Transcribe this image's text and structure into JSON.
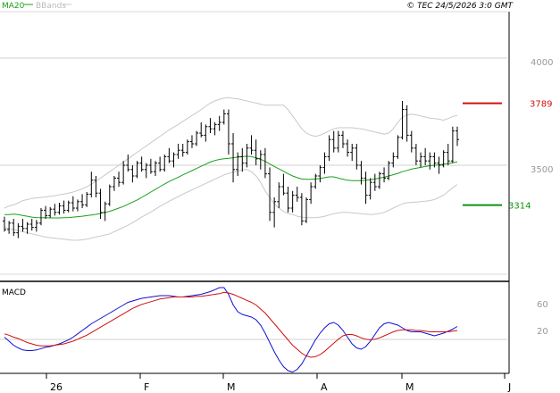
{
  "header": {
    "indicators": [
      "MA20",
      "BBands"
    ],
    "copyright": "© TEC 24/5/2026 3:0 GMT"
  },
  "colors": {
    "price": "#000000",
    "ma20": "#19a019",
    "bbands": "#c8c8c8",
    "resistance": "#d01010",
    "support": "#109010",
    "macd": "#1010d0",
    "signal": "#d01010",
    "grid": "#d0d0d0",
    "axis": "#000000",
    "label": "#999999"
  },
  "chart_data": [
    {
      "type": "ohlc",
      "title": "",
      "x_tick_labels": [
        "26",
        "F",
        "M",
        "A",
        "M",
        "J"
      ],
      "y_tick_labels": [
        "4000",
        "3500"
      ],
      "ylim": [
        2950,
        4250
      ],
      "levels": [
        {
          "label": "3789",
          "value": 3789,
          "kind": "resistance"
        },
        {
          "label": "3314",
          "value": 3314,
          "kind": "support"
        }
      ],
      "series": [
        {
          "name": "MA20",
          "kind": "ma",
          "values": [
            3270,
            3270,
            3272,
            3270,
            3266,
            3262,
            3258,
            3256,
            3255,
            3255,
            3254,
            3254,
            3254,
            3255,
            3256,
            3258,
            3260,
            3262,
            3265,
            3268,
            3271,
            3275,
            3280,
            3285,
            3292,
            3300,
            3308,
            3318,
            3328,
            3338,
            3350,
            3362,
            3375,
            3388,
            3400,
            3412,
            3424,
            3434,
            3444,
            3455,
            3465,
            3475,
            3485,
            3495,
            3505,
            3515,
            3522,
            3527,
            3530,
            3532,
            3535,
            3538,
            3540,
            3542,
            3540,
            3535,
            3528,
            3518,
            3506,
            3494,
            3483,
            3472,
            3460,
            3450,
            3442,
            3436,
            3434,
            3434,
            3436,
            3438,
            3442,
            3446,
            3446,
            3440,
            3435,
            3430,
            3428,
            3428,
            3428,
            3430,
            3432,
            3436,
            3440,
            3444,
            3450,
            3456,
            3462,
            3470,
            3476,
            3482,
            3486,
            3490,
            3494,
            3498,
            3500,
            3502,
            3505,
            3508,
            3512,
            3516
          ]
        },
        {
          "name": "BBands upper",
          "kind": "band",
          "values": [
            3300,
            3310,
            3315,
            3325,
            3335,
            3340,
            3345,
            3348,
            3350,
            3352,
            3355,
            3358,
            3362,
            3366,
            3370,
            3375,
            3382,
            3390,
            3400,
            3412,
            3425,
            3440,
            3455,
            3470,
            3485,
            3500,
            3515,
            3530,
            3545,
            3560,
            3575,
            3590,
            3605,
            3620,
            3635,
            3650,
            3665,
            3678,
            3690,
            3705,
            3718,
            3732,
            3745,
            3760,
            3775,
            3790,
            3800,
            3808,
            3813,
            3815,
            3812,
            3810,
            3805,
            3800,
            3795,
            3790,
            3785,
            3780,
            3780,
            3780,
            3780,
            3780,
            3760,
            3730,
            3700,
            3670,
            3650,
            3640,
            3635,
            3640,
            3650,
            3660,
            3670,
            3675,
            3675,
            3675,
            3675,
            3672,
            3670,
            3665,
            3660,
            3655,
            3650,
            3645,
            3650,
            3670,
            3700,
            3725,
            3735,
            3738,
            3735,
            3730,
            3725,
            3720,
            3718,
            3715,
            3710,
            3718,
            3728,
            3732
          ]
        },
        {
          "name": "BBands lower",
          "kind": "band",
          "values": [
            3210,
            3205,
            3200,
            3195,
            3190,
            3185,
            3180,
            3175,
            3170,
            3165,
            3162,
            3160,
            3157,
            3155,
            3152,
            3150,
            3150,
            3152,
            3155,
            3160,
            3165,
            3170,
            3175,
            3180,
            3190,
            3200,
            3210,
            3220,
            3232,
            3245,
            3258,
            3270,
            3282,
            3295,
            3308,
            3320,
            3332,
            3343,
            3354,
            3365,
            3375,
            3385,
            3395,
            3405,
            3415,
            3425,
            3435,
            3445,
            3455,
            3462,
            3468,
            3472,
            3478,
            3480,
            3470,
            3450,
            3420,
            3380,
            3350,
            3320,
            3300,
            3285,
            3275,
            3270,
            3262,
            3258,
            3255,
            3255,
            3256,
            3258,
            3262,
            3268,
            3274,
            3278,
            3280,
            3280,
            3278,
            3276,
            3274,
            3272,
            3270,
            3272,
            3275,
            3280,
            3290,
            3300,
            3310,
            3320,
            3325,
            3327,
            3328,
            3330,
            3332,
            3335,
            3340,
            3350,
            3360,
            3378,
            3395,
            3410
          ]
        }
      ],
      "ohlc": [
        [
          3240,
          3260,
          3190,
          3200
        ],
        [
          3200,
          3240,
          3180,
          3230
        ],
        [
          3230,
          3250,
          3170,
          3185
        ],
        [
          3185,
          3230,
          3160,
          3215
        ],
        [
          3215,
          3250,
          3190,
          3205
        ],
        [
          3205,
          3235,
          3180,
          3225
        ],
        [
          3225,
          3250,
          3195,
          3210
        ],
        [
          3210,
          3245,
          3190,
          3230
        ],
        [
          3230,
          3300,
          3220,
          3290
        ],
        [
          3290,
          3310,
          3250,
          3265
        ],
        [
          3265,
          3305,
          3255,
          3295
        ],
        [
          3295,
          3320,
          3265,
          3280
        ],
        [
          3280,
          3325,
          3270,
          3310
        ],
        [
          3310,
          3335,
          3275,
          3290
        ],
        [
          3290,
          3335,
          3280,
          3325
        ],
        [
          3325,
          3355,
          3285,
          3300
        ],
        [
          3300,
          3340,
          3285,
          3330
        ],
        [
          3330,
          3365,
          3300,
          3315
        ],
        [
          3315,
          3375,
          3305,
          3365
        ],
        [
          3365,
          3470,
          3350,
          3430
        ],
        [
          3430,
          3450,
          3350,
          3370
        ],
        [
          3370,
          3390,
          3250,
          3280
        ],
        [
          3280,
          3330,
          3240,
          3320
        ],
        [
          3320,
          3410,
          3310,
          3400
        ],
        [
          3400,
          3450,
          3380,
          3440
        ],
        [
          3440,
          3470,
          3400,
          3420
        ],
        [
          3420,
          3520,
          3410,
          3500
        ],
        [
          3500,
          3550,
          3470,
          3480
        ],
        [
          3480,
          3500,
          3420,
          3450
        ],
        [
          3450,
          3520,
          3440,
          3510
        ],
        [
          3510,
          3540,
          3470,
          3480
        ],
        [
          3480,
          3510,
          3440,
          3500
        ],
        [
          3500,
          3530,
          3460,
          3470
        ],
        [
          3470,
          3520,
          3450,
          3510
        ],
        [
          3510,
          3540,
          3470,
          3480
        ],
        [
          3480,
          3550,
          3470,
          3540
        ],
        [
          3540,
          3580,
          3510,
          3520
        ],
        [
          3520,
          3560,
          3490,
          3550
        ],
        [
          3550,
          3600,
          3530,
          3570
        ],
        [
          3570,
          3600,
          3540,
          3560
        ],
        [
          3560,
          3620,
          3550,
          3610
        ],
        [
          3610,
          3640,
          3580,
          3600
        ],
        [
          3600,
          3660,
          3590,
          3650
        ],
        [
          3650,
          3700,
          3630,
          3640
        ],
        [
          3640,
          3690,
          3610,
          3680
        ],
        [
          3680,
          3720,
          3650,
          3670
        ],
        [
          3670,
          3700,
          3640,
          3690
        ],
        [
          3690,
          3730,
          3660,
          3700
        ],
        [
          3700,
          3760,
          3690,
          3740
        ],
        [
          3740,
          3760,
          3550,
          3600
        ],
        [
          3600,
          3650,
          3420,
          3480
        ],
        [
          3480,
          3560,
          3450,
          3540
        ],
        [
          3540,
          3580,
          3470,
          3510
        ],
        [
          3510,
          3600,
          3490,
          3580
        ],
        [
          3580,
          3640,
          3550,
          3570
        ],
        [
          3570,
          3620,
          3500,
          3530
        ],
        [
          3530,
          3570,
          3480,
          3550
        ],
        [
          3550,
          3580,
          3440,
          3460
        ],
        [
          3460,
          3490,
          3240,
          3280
        ],
        [
          3280,
          3350,
          3210,
          3330
        ],
        [
          3330,
          3420,
          3300,
          3400
        ],
        [
          3400,
          3460,
          3360,
          3370
        ],
        [
          3370,
          3400,
          3280,
          3300
        ],
        [
          3300,
          3380,
          3280,
          3360
        ],
        [
          3360,
          3400,
          3330,
          3350
        ],
        [
          3350,
          3370,
          3220,
          3240
        ],
        [
          3240,
          3350,
          3230,
          3340
        ],
        [
          3340,
          3420,
          3320,
          3400
        ],
        [
          3400,
          3460,
          3390,
          3450
        ],
        [
          3450,
          3500,
          3420,
          3490
        ],
        [
          3490,
          3560,
          3460,
          3540
        ],
        [
          3540,
          3640,
          3520,
          3620
        ],
        [
          3620,
          3660,
          3560,
          3580
        ],
        [
          3580,
          3660,
          3560,
          3640
        ],
        [
          3640,
          3660,
          3580,
          3600
        ],
        [
          3600,
          3620,
          3540,
          3560
        ],
        [
          3560,
          3600,
          3520,
          3580
        ],
        [
          3580,
          3600,
          3480,
          3500
        ],
        [
          3500,
          3520,
          3410,
          3440
        ],
        [
          3440,
          3470,
          3320,
          3360
        ],
        [
          3360,
          3440,
          3340,
          3420
        ],
        [
          3420,
          3460,
          3380,
          3400
        ],
        [
          3400,
          3470,
          3390,
          3460
        ],
        [
          3460,
          3490,
          3420,
          3440
        ],
        [
          3440,
          3520,
          3430,
          3510
        ],
        [
          3510,
          3560,
          3490,
          3540
        ],
        [
          3540,
          3640,
          3530,
          3630
        ],
        [
          3630,
          3800,
          3620,
          3760
        ],
        [
          3760,
          3780,
          3610,
          3640
        ],
        [
          3640,
          3660,
          3560,
          3580
        ],
        [
          3580,
          3600,
          3500,
          3520
        ],
        [
          3520,
          3560,
          3490,
          3540
        ],
        [
          3540,
          3580,
          3500,
          3520
        ],
        [
          3520,
          3560,
          3480,
          3540
        ],
        [
          3540,
          3560,
          3490,
          3510
        ],
        [
          3510,
          3540,
          3460,
          3500
        ],
        [
          3500,
          3570,
          3490,
          3560
        ],
        [
          3560,
          3600,
          3500,
          3520
        ],
        [
          3520,
          3680,
          3510,
          3660
        ],
        [
          3660,
          3680,
          3590,
          3620
        ]
      ]
    },
    {
      "type": "line",
      "title": "MACD",
      "y_tick_labels": [
        "60",
        "20"
      ],
      "ylim": [
        -60,
        100
      ],
      "series": [
        {
          "name": "MACD",
          "values": [
            10,
            4,
            -2,
            -6,
            -9,
            -10,
            -10,
            -9,
            -7,
            -5,
            -4,
            -2,
            0,
            3,
            6,
            10,
            15,
            20,
            25,
            30,
            34,
            38,
            42,
            46,
            50,
            54,
            58,
            62,
            64,
            66,
            68,
            69,
            70,
            71,
            72,
            72,
            72,
            71,
            70,
            70,
            71,
            72,
            73,
            74,
            76,
            78,
            81,
            84,
            84,
            74,
            58,
            48,
            44,
            42,
            40,
            36,
            28,
            16,
            2,
            -12,
            -24,
            -34,
            -40,
            -42,
            -38,
            -30,
            -18,
            -6,
            6,
            16,
            24,
            30,
            32,
            28,
            20,
            10,
            0,
            -6,
            -8,
            -4,
            4,
            14,
            24,
            30,
            32,
            30,
            28,
            24,
            20,
            18,
            18,
            18,
            16,
            14,
            12,
            14,
            16,
            19,
            22,
            26
          ]
        },
        {
          "name": "Signal",
          "values": [
            15,
            13,
            10,
            8,
            5,
            2,
            0,
            -2,
            -3,
            -3,
            -3,
            -2,
            -1,
            0,
            2,
            4,
            7,
            10,
            13,
            17,
            21,
            25,
            29,
            33,
            37,
            41,
            45,
            49,
            53,
            56,
            59,
            61,
            63,
            65,
            67,
            68,
            69,
            70,
            70,
            70,
            70,
            70,
            71,
            71,
            72,
            73,
            74,
            75,
            77,
            76,
            74,
            71,
            68,
            65,
            62,
            58,
            52,
            46,
            38,
            30,
            22,
            14,
            6,
            -2,
            -8,
            -14,
            -18,
            -20,
            -19,
            -16,
            -11,
            -5,
            1,
            7,
            12,
            14,
            14,
            12,
            9,
            7,
            6,
            7,
            9,
            12,
            15,
            18,
            20,
            21,
            21,
            21,
            20,
            20,
            19,
            18,
            18,
            18,
            18,
            18,
            19,
            20
          ]
        }
      ]
    }
  ]
}
